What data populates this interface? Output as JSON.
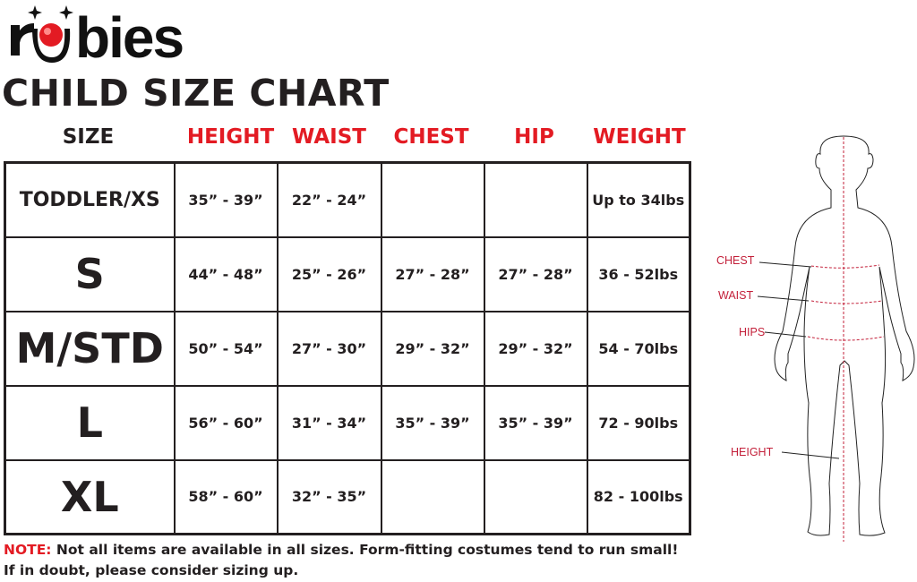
{
  "brand": {
    "logo_text": "rubies",
    "accent_color": "#e31b23"
  },
  "title": "CHILD SIZE CHART",
  "columns": [
    "SIZE",
    "HEIGHT",
    "WAIST",
    "CHEST",
    "HIP",
    "WEIGHT"
  ],
  "rows": [
    [
      "TODDLER/XS",
      "35” - 39”",
      "22” - 24”",
      "",
      "",
      "Up to 34lbs"
    ],
    [
      "S",
      "44” - 48”",
      "25” - 26”",
      "27” - 28”",
      "27” - 28”",
      "36 - 52lbs"
    ],
    [
      "M/STD",
      "50” - 54”",
      "27” - 30”",
      "29” - 32”",
      "29” - 32”",
      "54 - 70lbs"
    ],
    [
      "L",
      "56” - 60”",
      "31” - 34”",
      "35” - 39”",
      "35” - 39”",
      "72 - 90lbs"
    ],
    [
      "XL",
      "58” - 60”",
      "32” - 35”",
      "",
      "",
      "82 - 100lbs"
    ]
  ],
  "note": {
    "label": "NOTE:",
    "line1": " Not all items are available in all sizes. Form-fitting costumes tend to run small!",
    "line2": "If in doubt, please consider sizing up."
  },
  "figure": {
    "chest": "CHEST",
    "waist": "WAIST",
    "hips": "HIPS",
    "height": "HEIGHT"
  }
}
